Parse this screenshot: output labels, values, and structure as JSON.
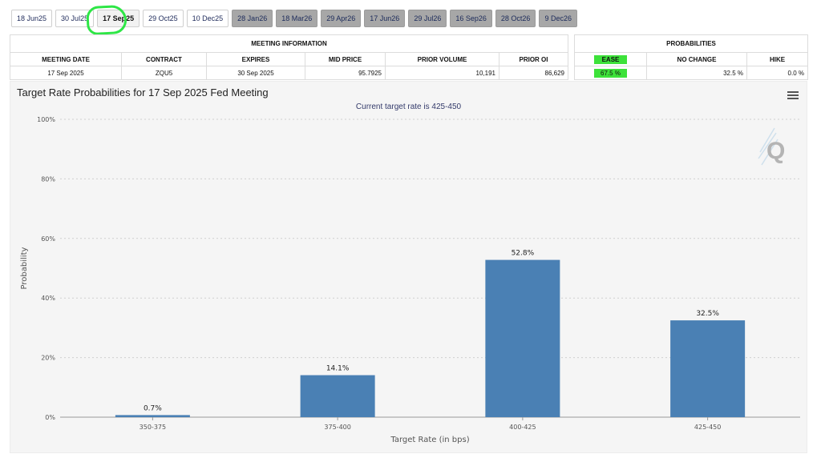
{
  "tabs": [
    {
      "label": "18 Jun25",
      "state": "normal"
    },
    {
      "label": "30 Jul25",
      "state": "normal"
    },
    {
      "label": "17 Sep25",
      "state": "active"
    },
    {
      "label": "29 Oct25",
      "state": "normal"
    },
    {
      "label": "10 Dec25",
      "state": "normal"
    },
    {
      "label": "28 Jan26",
      "state": "future"
    },
    {
      "label": "18 Mar26",
      "state": "future"
    },
    {
      "label": "29 Apr26",
      "state": "future"
    },
    {
      "label": "17 Jun26",
      "state": "future"
    },
    {
      "label": "29 Jul26",
      "state": "future"
    },
    {
      "label": "16 Sep26",
      "state": "future"
    },
    {
      "label": "28 Oct26",
      "state": "future"
    },
    {
      "label": "9 Dec26",
      "state": "future"
    }
  ],
  "meeting_info": {
    "section_title": "MEETING INFORMATION",
    "headers": [
      "MEETING DATE",
      "CONTRACT",
      "EXPIRES",
      "MID PRICE",
      "PRIOR VOLUME",
      "PRIOR OI"
    ],
    "row": [
      "17 Sep 2025",
      "ZQU5",
      "30 Sep 2025",
      "95.7925",
      "10,191",
      "86,629"
    ]
  },
  "probabilities": {
    "section_title": "PROBABILITIES",
    "headers": [
      "EASE",
      "NO CHANGE",
      "HIKE"
    ],
    "row": [
      "67.5 %",
      "32.5 %",
      "0.0 %"
    ],
    "highlight_color": "#3de23a"
  },
  "chart_header": {
    "title": "Target Rate Probabilities for 17 Sep 2025 Fed Meeting",
    "subtitle": "Current target rate is 425-450"
  },
  "chart_data": {
    "type": "bar",
    "title": "Target Rate Probabilities for 17 Sep 2025 Fed Meeting",
    "subtitle": "Current target rate is 425-450",
    "categories": [
      "350-375",
      "375-400",
      "400-425",
      "425-450"
    ],
    "values": [
      0.7,
      14.1,
      52.8,
      32.5
    ],
    "value_labels": [
      "0.7%",
      "14.1%",
      "52.8%",
      "32.5%"
    ],
    "xlabel": "Target Rate (in bps)",
    "ylabel": "Probability",
    "ylim": [
      0,
      100
    ],
    "yticks": [
      0,
      20,
      40,
      60,
      80,
      100
    ],
    "ytick_labels": [
      "0%",
      "20%",
      "40%",
      "60%",
      "80%",
      "100%"
    ],
    "grid": true,
    "bar_color": "#4a80b4"
  },
  "colors": {
    "tab_highlight": "#2ee646",
    "future_tab": "#a7a7a7"
  }
}
